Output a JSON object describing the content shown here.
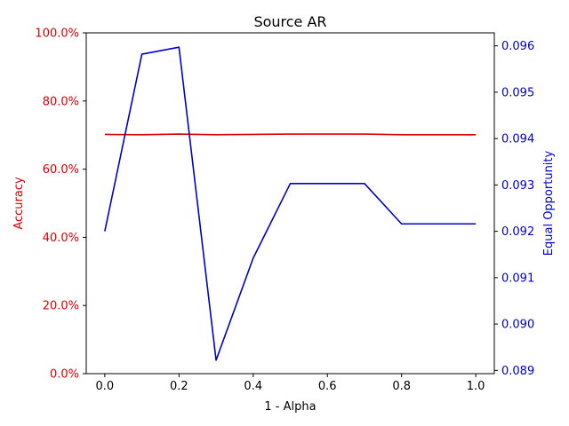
{
  "chart_data": {
    "type": "line",
    "title": "Source AR",
    "xlabel": "1 - Alpha",
    "x": [
      0.0,
      0.1,
      0.2,
      0.3,
      0.4,
      0.5,
      0.6,
      0.7,
      0.8,
      0.9,
      1.0
    ],
    "xlim": [
      -0.05,
      1.05
    ],
    "x_ticks": [
      0.0,
      0.2,
      0.4,
      0.6,
      0.8,
      1.0
    ],
    "x_tick_labels": [
      "0.0",
      "0.2",
      "0.4",
      "0.6",
      "0.8",
      "1.0"
    ],
    "left_axis": {
      "label": "Accuracy",
      "color": "#dd0000",
      "ylim": [
        0.0,
        1.0
      ],
      "ticks": [
        0.0,
        0.2,
        0.4,
        0.6,
        0.8,
        1.0
      ],
      "tick_labels": [
        "0.0%",
        "20.0%",
        "40.0%",
        "60.0%",
        "80.0%",
        "100.0%"
      ]
    },
    "right_axis": {
      "label": "Equal Opportunity",
      "color": "#0000cc",
      "ylim": [
        0.08893,
        0.09628
      ],
      "ticks": [
        0.089,
        0.09,
        0.091,
        0.092,
        0.093,
        0.094,
        0.095,
        0.096
      ],
      "tick_labels": [
        "0.089",
        "0.090",
        "0.091",
        "0.092",
        "0.093",
        "0.094",
        "0.095",
        "0.096"
      ]
    },
    "series": [
      {
        "axis": "left",
        "color": "#dd0000",
        "values": [
          0.702,
          0.701,
          0.703,
          0.701,
          0.702,
          0.703,
          0.703,
          0.703,
          0.701,
          0.701,
          0.701
        ]
      },
      {
        "axis": "right",
        "color": "#0000cc",
        "values": [
          0.092,
          0.09582,
          0.09597,
          0.08922,
          0.09142,
          0.09303,
          0.09303,
          0.09303,
          0.09216,
          0.09216,
          0.09216
        ]
      }
    ],
    "grid": false,
    "legend": "none"
  }
}
